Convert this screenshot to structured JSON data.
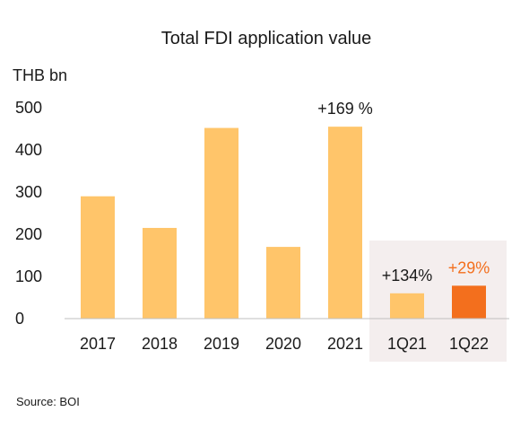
{
  "chart_data": {
    "type": "bar",
    "title": "Total FDI application value",
    "unit_label": "THB bn",
    "categories": [
      "2017",
      "2018",
      "2019",
      "2020",
      "2021",
      "1Q21",
      "1Q22"
    ],
    "values": [
      290,
      215,
      452,
      170,
      455,
      60,
      78
    ],
    "ylim": [
      0,
      500
    ],
    "yticks": [
      "0",
      "100",
      "200",
      "300",
      "400",
      "500"
    ],
    "grid": false,
    "bar_colors": [
      "#FFC56A",
      "#FFC56A",
      "#FFC56A",
      "#FFC56A",
      "#FFC56A",
      "#FFC56A",
      "#F36F1D"
    ],
    "annotations": [
      {
        "category": "2021",
        "text": "+169 %",
        "color": "#1a1a1a"
      },
      {
        "category": "1Q21",
        "text": "+134%",
        "color": "#1a1a1a"
      },
      {
        "category": "1Q22",
        "text": "+29%",
        "color": "#F36F1D"
      }
    ],
    "highlight_categories": [
      "1Q21",
      "1Q22"
    ],
    "highlight_color": "#F4EEEE"
  },
  "source": "Source: BOI"
}
